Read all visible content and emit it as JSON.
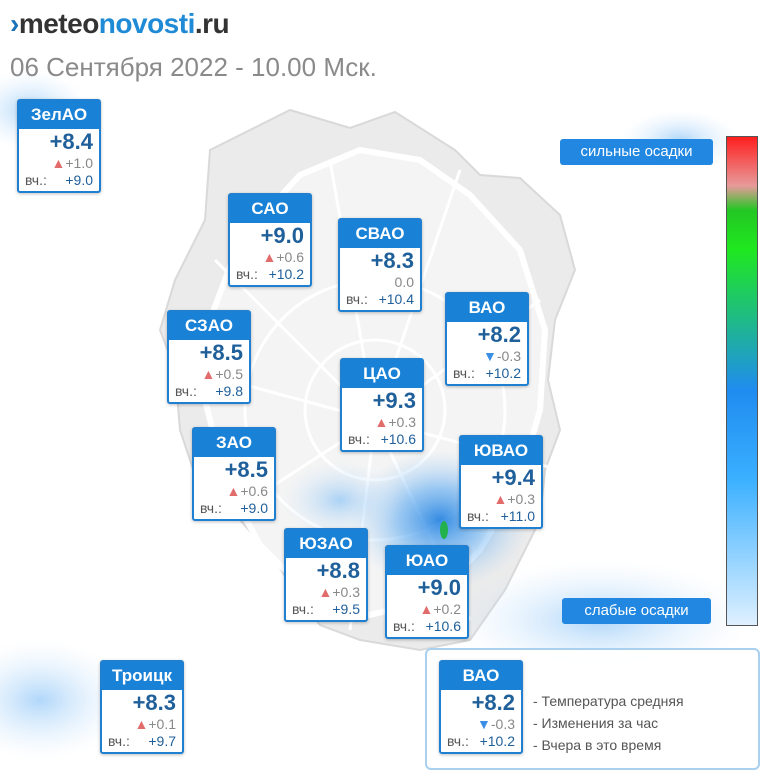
{
  "header": {
    "logo_meteo": "meteo",
    "logo_novosti": "novosti",
    "logo_tld": ".ru",
    "subtitle": "06 Сентября 2022 - 10.00 Мск."
  },
  "stations": [
    {
      "id": "zelao",
      "name": "ЗелАО",
      "temp": "+8.4",
      "trend": "up",
      "change": "+1.0",
      "yesterday_label": "вч.:",
      "yesterday": "+9.0"
    },
    {
      "id": "sao",
      "name": "САО",
      "temp": "+9.0",
      "trend": "up",
      "change": "+0.6",
      "yesterday_label": "вч.:",
      "yesterday": "+10.2"
    },
    {
      "id": "svao",
      "name": "СВАО",
      "temp": "+8.3",
      "trend": "none",
      "change": "0.0",
      "yesterday_label": "вч.:",
      "yesterday": "+10.4"
    },
    {
      "id": "vao",
      "name": "ВАО",
      "temp": "+8.2",
      "trend": "down",
      "change": "-0.3",
      "yesterday_label": "вч.:",
      "yesterday": "+10.2"
    },
    {
      "id": "szao",
      "name": "СЗАО",
      "temp": "+8.5",
      "trend": "up",
      "change": "+0.5",
      "yesterday_label": "вч.:",
      "yesterday": "+9.8"
    },
    {
      "id": "cao",
      "name": "ЦАО",
      "temp": "+9.3",
      "trend": "up",
      "change": "+0.3",
      "yesterday_label": "вч.:",
      "yesterday": "+10.6"
    },
    {
      "id": "zao",
      "name": "ЗАО",
      "temp": "+8.5",
      "trend": "up",
      "change": "+0.6",
      "yesterday_label": "вч.:",
      "yesterday": "+9.0"
    },
    {
      "id": "yuvao",
      "name": "ЮВАО",
      "temp": "+9.4",
      "trend": "up",
      "change": "+0.3",
      "yesterday_label": "вч.:",
      "yesterday": "+11.0"
    },
    {
      "id": "yuzao",
      "name": "ЮЗАО",
      "temp": "+8.8",
      "trend": "up",
      "change": "+0.3",
      "yesterday_label": "вч.:",
      "yesterday": "+9.5"
    },
    {
      "id": "yuao",
      "name": "ЮАО",
      "temp": "+9.0",
      "trend": "up",
      "change": "+0.2",
      "yesterday_label": "вч.:",
      "yesterday": "+10.6"
    },
    {
      "id": "troitsk",
      "name": "Троицк",
      "temp": "+8.3",
      "trend": "up",
      "change": "+0.1",
      "yesterday_label": "вч.:",
      "yesterday": "+9.7"
    }
  ],
  "scale": {
    "strong_label": "сильные осадки",
    "weak_label": "слабые осадки",
    "top_color": "#ff1f1f",
    "bottom_color": "#dff0ff"
  },
  "legend": {
    "example": {
      "name": "ВАО",
      "temp": "+8.2",
      "trend": "down",
      "change": "-0.3",
      "yesterday_label": "вч.:",
      "yesterday": "+10.2"
    },
    "line_temp": "- Температура средняя",
    "line_change": "- Изменения за час",
    "line_yesterday": "- Вчера в это время"
  },
  "colors": {
    "accent": "#1a82d6",
    "temp_text": "#1f5f9a",
    "trend_up": "#e26b6b",
    "trend_down": "#3a8ee6"
  }
}
